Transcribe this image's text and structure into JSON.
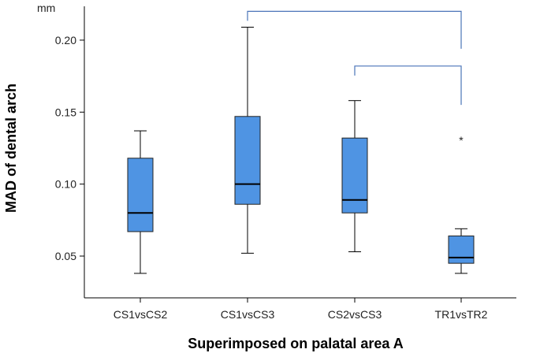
{
  "chart_data": {
    "type": "boxplot",
    "title": "",
    "xlabel": "Superimposed on palatal area A",
    "ylabel": "MAD of dental arch",
    "yunit": "mm",
    "ylim": [
      0.021,
      0.2235
    ],
    "yticks": [
      0.05,
      0.1,
      0.15,
      0.2
    ],
    "ytick_labels": [
      "0.05",
      "0.10",
      "0.15",
      "0.20"
    ],
    "box_color": "#4F94E3",
    "bracket_color": "#4A74B8",
    "categories": [
      "CS1vsCS2",
      "CS1vsCS3",
      "CS2vsCS3",
      "TR1vsTR2"
    ],
    "boxes": [
      {
        "label": "CS1vsCS2",
        "whisker_low": 0.038,
        "q1": 0.067,
        "median": 0.08,
        "q3": 0.118,
        "whisker_high": 0.137,
        "outliers": []
      },
      {
        "label": "CS1vsCS3",
        "whisker_low": 0.052,
        "q1": 0.086,
        "median": 0.1,
        "q3": 0.147,
        "whisker_high": 0.209,
        "outliers": []
      },
      {
        "label": "CS2vsCS3",
        "whisker_low": 0.053,
        "q1": 0.08,
        "median": 0.089,
        "q3": 0.132,
        "whisker_high": 0.158,
        "outliers": []
      },
      {
        "label": "TR1vsTR2",
        "whisker_low": 0.038,
        "q1": 0.045,
        "median": 0.049,
        "q3": 0.064,
        "whisker_high": 0.069,
        "outliers": [
          0.132
        ]
      }
    ],
    "significance_brackets": [
      {
        "from": "CS1vsCS3",
        "to": "TR1vsTR2",
        "y": 0.22,
        "drop_to": 0.194
      },
      {
        "from": "CS2vsCS3",
        "to": "TR1vsTR2",
        "y": 0.182,
        "drop_to": 0.155
      }
    ]
  }
}
